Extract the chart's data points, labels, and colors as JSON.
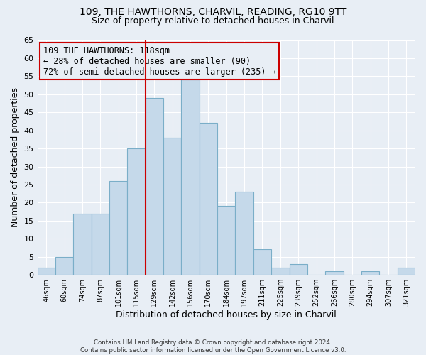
{
  "title1": "109, THE HAWTHORNS, CHARVIL, READING, RG10 9TT",
  "title2": "Size of property relative to detached houses in Charvil",
  "xlabel": "Distribution of detached houses by size in Charvil",
  "ylabel": "Number of detached properties",
  "categories": [
    "46sqm",
    "60sqm",
    "74sqm",
    "87sqm",
    "101sqm",
    "115sqm",
    "129sqm",
    "142sqm",
    "156sqm",
    "170sqm",
    "184sqm",
    "197sqm",
    "211sqm",
    "225sqm",
    "239sqm",
    "252sqm",
    "266sqm",
    "280sqm",
    "294sqm",
    "307sqm",
    "321sqm"
  ],
  "values": [
    2,
    5,
    17,
    17,
    26,
    35,
    49,
    38,
    54,
    42,
    19,
    23,
    7,
    2,
    3,
    0,
    1,
    0,
    1,
    0,
    2
  ],
  "bar_color": "#c5d9ea",
  "bar_edge_color": "#7aaec8",
  "red_line_x": 5.5,
  "marker_color": "#cc0000",
  "annotation_line1": "109 THE HAWTHORNS: 118sqm",
  "annotation_line2": "← 28% of detached houses are smaller (90)",
  "annotation_line3": "72% of semi-detached houses are larger (235) →",
  "annotation_box_edge": "#cc0000",
  "ylim": [
    0,
    65
  ],
  "yticks": [
    0,
    5,
    10,
    15,
    20,
    25,
    30,
    35,
    40,
    45,
    50,
    55,
    60,
    65
  ],
  "footnote": "Contains HM Land Registry data © Crown copyright and database right 2024.\nContains public sector information licensed under the Open Government Licence v3.0.",
  "bg_color": "#e8eef5",
  "grid_color": "#ffffff",
  "title1_fontsize": 10,
  "title2_fontsize": 9,
  "annot_fontsize": 8.5,
  "xlabel_fontsize": 9,
  "ylabel_fontsize": 9
}
